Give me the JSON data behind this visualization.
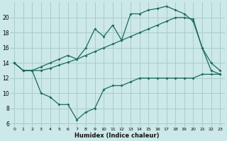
{
  "xlabel": "Humidex (Indice chaleur)",
  "bg_color": "#cce8e8",
  "grid_color": "#aacccc",
  "line_color": "#1a6b5a",
  "xlim": [
    -0.5,
    23.5
  ],
  "ylim": [
    5.5,
    22.0
  ],
  "xticks": [
    0,
    1,
    2,
    3,
    4,
    5,
    6,
    7,
    8,
    9,
    10,
    11,
    12,
    13,
    14,
    15,
    16,
    17,
    18,
    19,
    20,
    21,
    22,
    23
  ],
  "yticks": [
    6,
    8,
    10,
    12,
    14,
    16,
    18,
    20
  ],
  "line1_x": [
    0,
    1,
    2,
    3,
    4,
    5,
    6,
    7,
    8,
    9,
    10,
    11,
    12,
    13,
    14,
    15,
    16,
    17,
    18,
    19,
    20,
    21,
    22,
    23
  ],
  "line1_y": [
    14,
    13,
    13,
    13.5,
    14.0,
    14.5,
    15.0,
    14.5,
    16.0,
    18.5,
    17.5,
    19.0,
    17.0,
    20.5,
    20.5,
    21.0,
    21.2,
    21.5,
    21.0,
    20.5,
    19.5,
    16.0,
    14.0,
    13.0
  ],
  "line2_x": [
    0,
    1,
    2,
    3,
    4,
    5,
    6,
    7,
    8,
    9,
    10,
    11,
    12,
    13,
    14,
    15,
    16,
    17,
    18,
    19,
    20,
    21,
    22,
    23
  ],
  "line2_y": [
    14,
    13,
    13,
    13,
    13.3,
    13.7,
    14.1,
    14.5,
    15.0,
    15.5,
    16.0,
    16.5,
    17.0,
    17.5,
    18.0,
    18.5,
    19.0,
    19.5,
    20.0,
    20.0,
    19.8,
    16.0,
    13.0,
    12.5
  ],
  "line3_x": [
    0,
    1,
    2,
    3,
    4,
    5,
    6,
    7,
    8,
    9,
    10,
    11,
    12,
    13,
    14,
    15,
    16,
    17,
    18,
    19,
    20,
    21,
    22,
    23
  ],
  "line3_y": [
    14,
    13,
    13,
    10.0,
    9.5,
    8.5,
    8.5,
    6.5,
    7.5,
    8.0,
    10.5,
    11.0,
    11.0,
    11.5,
    12.0,
    12.0,
    12.0,
    12.0,
    12.0,
    12.0,
    12.0,
    12.5,
    12.5,
    12.5
  ]
}
